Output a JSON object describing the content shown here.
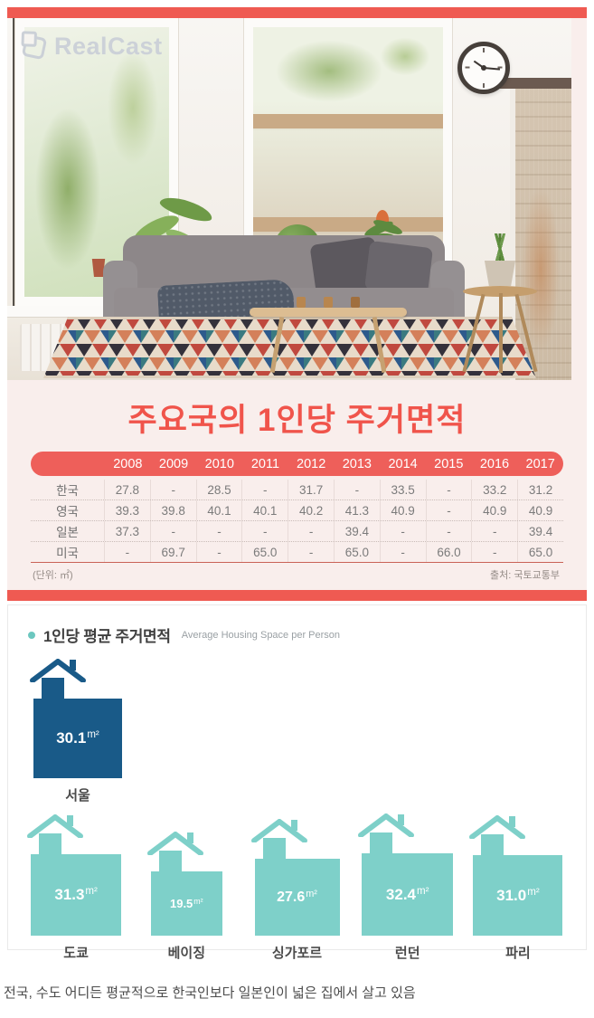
{
  "brand": {
    "logo_text": "RealCast"
  },
  "title_section": {
    "title": "주요국의 1인당 주거면적"
  },
  "table": {
    "years": [
      "2008",
      "2009",
      "2010",
      "2011",
      "2012",
      "2013",
      "2014",
      "2015",
      "2016",
      "2017"
    ],
    "rows": [
      {
        "country": "한국",
        "values": [
          "27.8",
          "-",
          "28.5",
          "-",
          "31.7",
          "-",
          "33.5",
          "-",
          "33.2",
          "31.2"
        ]
      },
      {
        "country": "영국",
        "values": [
          "39.3",
          "39.8",
          "40.1",
          "40.1",
          "40.2",
          "41.3",
          "40.9",
          "-",
          "40.9",
          "40.9"
        ]
      },
      {
        "country": "일본",
        "values": [
          "37.3",
          "-",
          "-",
          "-",
          "-",
          "39.4",
          "-",
          "-",
          "-",
          "39.4"
        ]
      },
      {
        "country": "미국",
        "values": [
          "-",
          "69.7",
          "-",
          "65.0",
          "-",
          "65.0",
          "-",
          "66.0",
          "-",
          "65.0"
        ]
      }
    ],
    "unit_note": "(단위: ㎡)",
    "source": "출처: 국토교통부"
  },
  "chart": {
    "title_ko": "1인당 평균 주거면적",
    "title_en": "Average Housing Space per Person",
    "unit_label": "m²"
  },
  "houses": [
    {
      "city": "서울",
      "value": 30.1,
      "row": 1,
      "color": "#195a88"
    },
    {
      "city": "도쿄",
      "value": 31.3,
      "row": 2,
      "color": "#7ed0c9"
    },
    {
      "city": "베이징",
      "value": 19.5,
      "row": 2,
      "color": "#7ed0c9"
    },
    {
      "city": "싱가포르",
      "value": 27.6,
      "row": 2,
      "color": "#7ed0c9"
    },
    {
      "city": "런던",
      "value": 32.4,
      "row": 2,
      "color": "#7ed0c9"
    },
    {
      "city": "파리",
      "value": 31.0,
      "row": 2,
      "color": "#7ed0c9"
    }
  ],
  "chart_data": [
    {
      "type": "table",
      "title": "주요국의 1인당 주거면적",
      "unit": "㎡",
      "columns": [
        "2008",
        "2009",
        "2010",
        "2011",
        "2012",
        "2013",
        "2014",
        "2015",
        "2016",
        "2017"
      ],
      "rows": [
        {
          "label": "한국",
          "values": [
            27.8,
            null,
            28.5,
            null,
            31.7,
            null,
            33.5,
            null,
            33.2,
            31.2
          ]
        },
        {
          "label": "영국",
          "values": [
            39.3,
            39.8,
            40.1,
            40.1,
            40.2,
            41.3,
            40.9,
            null,
            40.9,
            40.9
          ]
        },
        {
          "label": "일본",
          "values": [
            37.3,
            null,
            null,
            null,
            null,
            39.4,
            null,
            null,
            null,
            39.4
          ]
        },
        {
          "label": "미국",
          "values": [
            null,
            69.7,
            null,
            65.0,
            null,
            65.0,
            null,
            66.0,
            null,
            65.0
          ]
        }
      ],
      "source": "국토교통부"
    },
    {
      "type": "bar",
      "title": "1인당 평균 주거면적",
      "subtitle": "Average Housing Space per Person",
      "categories": [
        "서울",
        "도쿄",
        "베이징",
        "싱가포르",
        "런던",
        "파리"
      ],
      "values": [
        30.1,
        31.3,
        19.5,
        27.6,
        32.4,
        31.0
      ],
      "unit": "㎡",
      "highlight_index": 0,
      "colors": {
        "highlight": "#195a88",
        "default": "#7ed0c9"
      },
      "note": "area of square scales with value"
    }
  ],
  "caption": "전국, 수도 어디든 평균적으로 한국인보다 일본인이 넓은 집에서 살고 있음",
  "colors": {
    "accent_red": "#ef5a52",
    "header_bar_red": "#ee5f5a",
    "title_red": "#f0544b",
    "card_pink": "#f9eeec",
    "seoul_blue": "#195a88",
    "city_teal": "#7ed0c9",
    "bullet_teal": "#6cc7bf"
  }
}
